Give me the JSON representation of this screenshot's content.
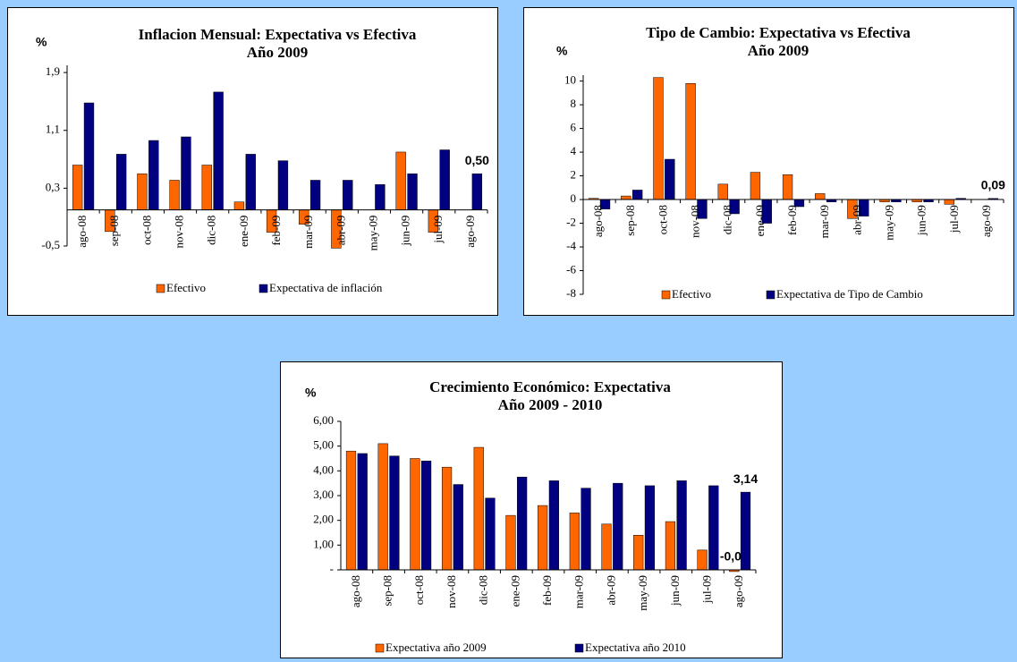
{
  "chart_data": [
    {
      "type": "bar",
      "title": "Inflacion Mensual: Expectativa vs Efectiva",
      "subtitle": "Año 2009",
      "y_label": "%",
      "categories": [
        "ago-08",
        "sep-08",
        "oct-08",
        "nov-08",
        "dic-08",
        "ene-09",
        "feb-09",
        "mar-09",
        "abr-09",
        "may-09",
        "jun-09",
        "jul-09",
        "ago-09"
      ],
      "series": [
        {
          "name": "Efectivo",
          "color": "#ff6600",
          "values": [
            0.62,
            -0.3,
            0.5,
            0.41,
            0.62,
            0.11,
            -0.31,
            -0.2,
            -0.53,
            0,
            0.8,
            -0.31,
            null
          ]
        },
        {
          "name": "Expectativa de inflación",
          "color": "#000080",
          "values": [
            1.48,
            0.77,
            0.96,
            1.01,
            1.63,
            0.77,
            0.68,
            0.41,
            0.41,
            0.35,
            0.5,
            0.83,
            0.5
          ],
          "value_labels": [
            null,
            null,
            null,
            null,
            null,
            null,
            null,
            null,
            null,
            null,
            null,
            null,
            "0,50"
          ],
          "value_label_color": "#000000"
        }
      ],
      "ylim": [
        -0.5,
        2.0
      ],
      "yticks": [
        {
          "value": -0.5,
          "label": "-0,5"
        },
        {
          "value": 0.3,
          "label": "0,3"
        },
        {
          "value": 1.1,
          "label": "1,1"
        },
        {
          "value": 1.9,
          "label": "1,9"
        }
      ]
    },
    {
      "type": "bar",
      "title": "Tipo de Cambio: Expectativa vs Efectiva",
      "subtitle": "Año 2009",
      "y_label": "%",
      "categories": [
        "ago-08",
        "sep-08",
        "oct-08",
        "nov-08",
        "dic-08",
        "ene-09",
        "feb-09",
        "mar-09",
        "abr-09",
        "may-09",
        "jun-09",
        "jul-09",
        "ago-09"
      ],
      "series": [
        {
          "name": "Efectivo",
          "color": "#ff6600",
          "values": [
            0.1,
            0.3,
            10.3,
            9.8,
            1.3,
            2.3,
            2.1,
            0.5,
            -1.6,
            -0.2,
            -0.2,
            -0.4,
            null
          ]
        },
        {
          "name": "Expectativa de Tipo de Cambio",
          "color": "#000080",
          "values": [
            -0.8,
            0.8,
            3.4,
            -1.6,
            -1.2,
            -2.0,
            -0.6,
            -0.2,
            -1.4,
            -0.2,
            -0.2,
            0.1,
            0.09
          ],
          "value_labels": [
            null,
            null,
            null,
            null,
            null,
            null,
            null,
            null,
            null,
            null,
            null,
            null,
            "0,09"
          ],
          "value_label_color": "#000000"
        }
      ],
      "ylim": [
        -8,
        10.5
      ],
      "yticks": [
        -8,
        -6,
        -4,
        -2,
        0,
        2,
        4,
        6,
        8,
        10
      ]
    },
    {
      "type": "bar",
      "title": "Crecimiento Económico: Expectativa",
      "subtitle": "Año 2009 - 2010",
      "y_label": "%",
      "categories": [
        "ago-08",
        "sep-08",
        "oct-08",
        "nov-08",
        "dic-08",
        "ene-09",
        "feb-09",
        "mar-09",
        "abr-09",
        "may-09",
        "jun-09",
        "jul-09",
        "ago-09"
      ],
      "series": [
        {
          "name": "Expectativa año 2009",
          "color": "#ff6600",
          "values": [
            4.8,
            5.1,
            4.5,
            4.15,
            4.95,
            2.2,
            2.6,
            2.3,
            1.85,
            1.4,
            1.95,
            0.8,
            -0.07
          ],
          "value_labels": [
            null,
            null,
            null,
            null,
            null,
            null,
            null,
            null,
            null,
            null,
            null,
            null,
            "-0,07"
          ],
          "value_label_color": "#ff6600"
        },
        {
          "name": "Expectativa año 2010",
          "color": "#000080",
          "values": [
            4.7,
            4.6,
            4.4,
            3.45,
            2.9,
            3.75,
            3.6,
            3.3,
            3.5,
            3.4,
            3.6,
            3.4,
            3.14
          ],
          "value_labels": [
            null,
            null,
            null,
            null,
            null,
            null,
            null,
            null,
            null,
            null,
            null,
            null,
            "3,14"
          ],
          "value_label_color": "#000000"
        }
      ],
      "ylim": [
        0,
        6
      ],
      "yticks": [
        {
          "value": 0,
          "label": "-"
        },
        {
          "value": 1,
          "label": "1,00"
        },
        {
          "value": 2,
          "label": "2,00"
        },
        {
          "value": 3,
          "label": "3,00"
        },
        {
          "value": 4,
          "label": "4,00"
        },
        {
          "value": 5,
          "label": "5,00"
        },
        {
          "value": 6,
          "label": "6,00"
        }
      ]
    }
  ]
}
